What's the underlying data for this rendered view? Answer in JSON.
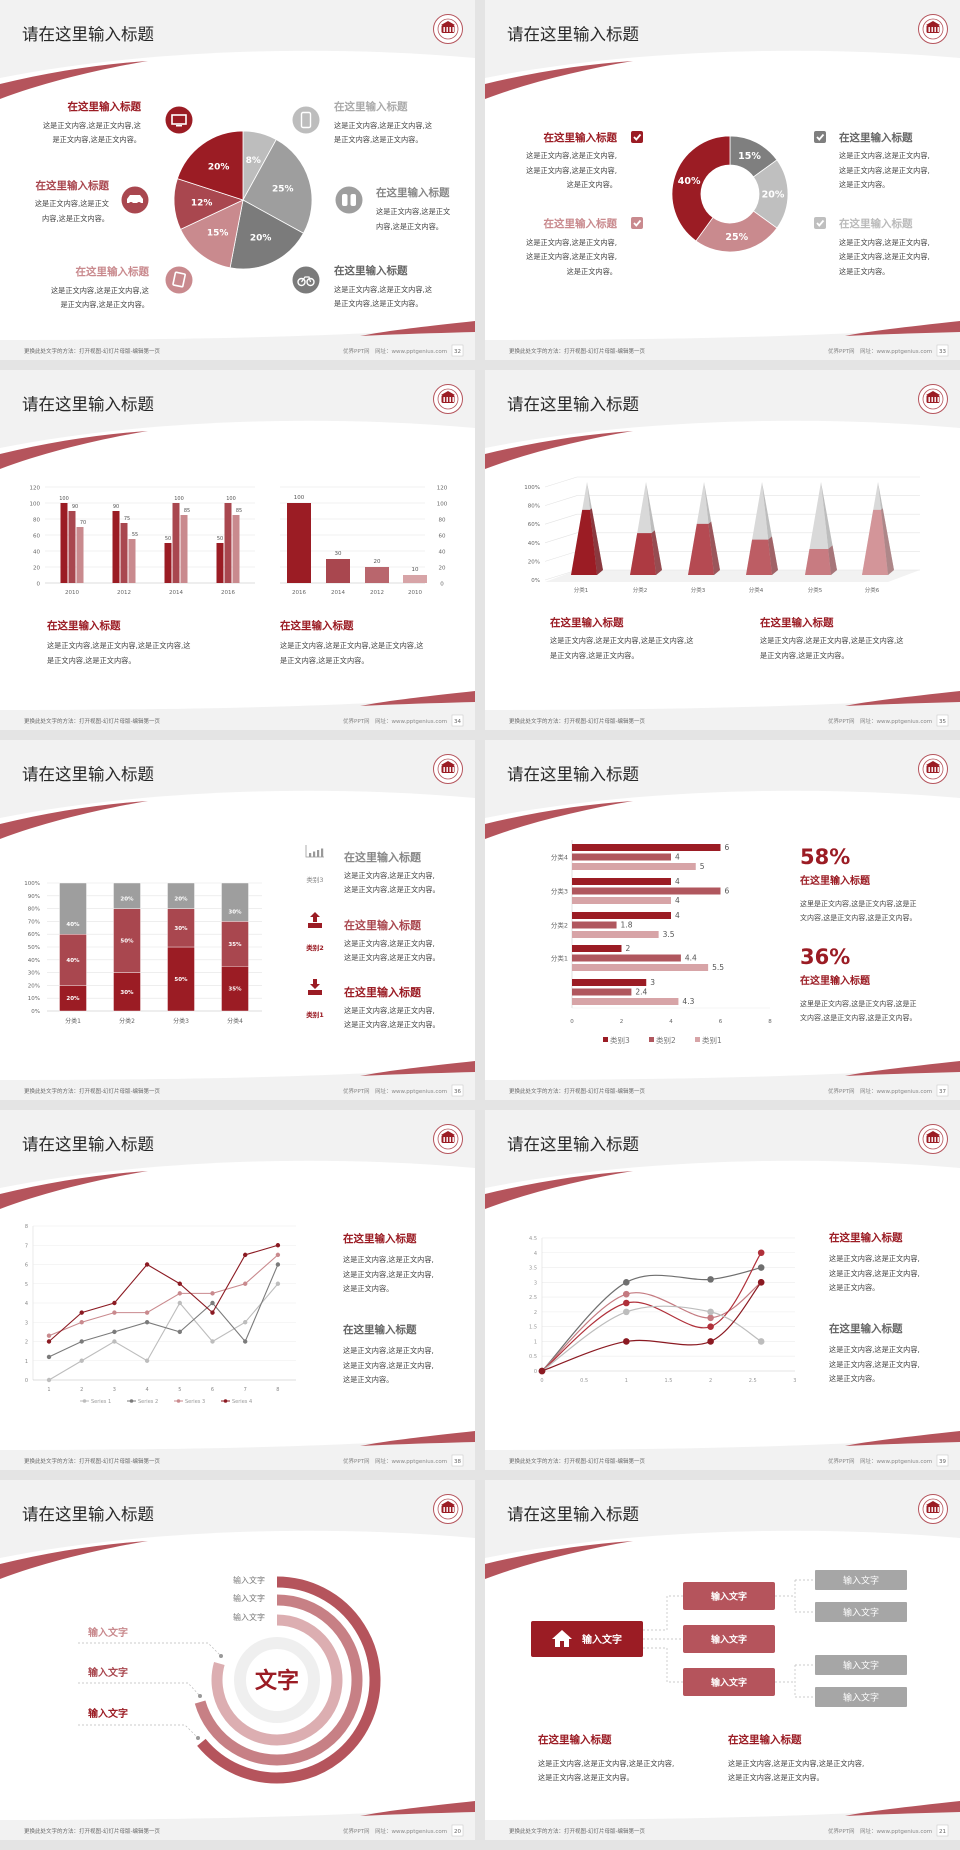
{
  "common": {
    "slide_title": "请在这里输入标题",
    "footer_note": "更换此处文字的方法：打开视图-幻灯片母版-编辑第一页",
    "footer_site": "优界PPT网",
    "footer_url": "网址：www.pptgenius.com"
  },
  "colors": {
    "dark_red": "#9b1c24",
    "mid_red": "#a9474f",
    "pink": "#c98a8e",
    "light_pink": "#d7a4a7",
    "dark_grey": "#7b7b7b",
    "grey": "#9e9e9e",
    "light_grey": "#bdbdbd"
  },
  "slides": [
    {
      "page": "32",
      "blocks": [
        {
          "title": "在这里输入标题",
          "lines": [
            "这是正文内容,这是正文内容,这",
            "是正文内容,这是正文内容。"
          ],
          "icon": "monitor-icon"
        },
        {
          "title": "在这里输入标题",
          "lines": [
            "这是正文内容,这是正文",
            "内容,这是正文内容。"
          ],
          "icon": "car-icon"
        },
        {
          "title": "在这里输入标题",
          "lines": [
            "这是正文内容,这是正文内容,这",
            "是正文内容,这是正文内容。"
          ],
          "icon": "book-icon"
        },
        {
          "title": "在这里输入标题",
          "lines": [
            "这是正文内容,这是正文内容,这",
            "是正文内容,这是正文内容。"
          ],
          "icon": "phone-icon"
        },
        {
          "title": "在这里输入标题",
          "lines": [
            "这是正文内容,这是正文",
            "内容,这是正文内容。"
          ],
          "icon": "binoculars-icon"
        },
        {
          "title": "在这里输入标题",
          "lines": [
            "这是正文内容,这是正文内容,这",
            "是正文内容,这是正文内容。"
          ],
          "icon": "bicycle-icon"
        }
      ]
    },
    {
      "page": "33",
      "blocks": [
        {
          "title": "在这里输入标题",
          "lines": [
            "这是正文内容,这是正文内容,",
            "这是正文内容,这是正文内容,",
            "这是正文内容。"
          ]
        },
        {
          "title": "在这里输入标题",
          "lines": [
            "这是正文内容,这是正文内容,",
            "这是正文内容,这是正文内容,",
            "这是正文内容。"
          ]
        },
        {
          "title": "在这里输入标题",
          "lines": [
            "这是正文内容,这是正文内容,",
            "这是正文内容,这是正文内容,",
            "这是正文内容。"
          ]
        },
        {
          "title": "在这里输入标题",
          "lines": [
            "这是正文内容,这是正文内容,",
            "这是正文内容,这是正文内容,",
            "这是正文内容。"
          ]
        }
      ]
    },
    {
      "page": "34",
      "blocks": [
        {
          "title": "在这里输入标题",
          "lines": [
            "这是正文内容,这是正文内容,这是正文内容,这",
            "是正文内容,这是正文内容。"
          ]
        },
        {
          "title": "在这里输入标题",
          "lines": [
            "这是正文内容,这是正文内容,这是正文内容,这",
            "是正文内容,这是正文内容。"
          ]
        }
      ]
    },
    {
      "page": "35",
      "blocks": [
        {
          "title": "在这里输入标题",
          "lines": [
            "这是正文内容,这是正文内容,这是正文内容,这",
            "是正文内容,这是正文内容。"
          ]
        },
        {
          "title": "在这里输入标题",
          "lines": [
            "这是正文内容,这是正文内容,这是正文内容,这",
            "是正文内容,这是正文内容。"
          ]
        }
      ]
    },
    {
      "page": "36",
      "blocks": [
        {
          "label": "类别3",
          "icon": "bar-chart-icon",
          "title": "在这里输入标题",
          "lines": [
            "这是正文内容,这是正文内容,",
            "这是正文内容,这是正文内容。"
          ]
        },
        {
          "label": "类别2",
          "icon": "upload-icon",
          "title": "在这里输入标题",
          "lines": [
            "这是正文内容,这是正文内容,",
            "这是正文内容,这是正文内容。"
          ]
        },
        {
          "label": "类别1",
          "icon": "download-icon",
          "title": "在这里输入标题",
          "lines": [
            "这是正文内容,这是正文内容,",
            "这是正文内容,这是正文内容。"
          ]
        }
      ]
    },
    {
      "page": "37",
      "stats": [
        {
          "value": "58%",
          "title": "在这里输入标题",
          "lines": [
            "这里是正文内容,这是正文内容,这是正",
            "文内容,这是正文内容,这是正文内容。"
          ]
        },
        {
          "value": "36%",
          "title": "在这里输入标题",
          "lines": [
            "这里是正文内容,这是正文内容,这是正",
            "文内容,这是正文内容,这是正文内容。"
          ]
        }
      ]
    },
    {
      "page": "38",
      "blocks": [
        {
          "title": "在这里输入标题",
          "lines": [
            "这是正文内容,这是正文内容,",
            "这是正文内容,这是正文内容,",
            "这是正文内容。"
          ]
        },
        {
          "title": "在这里输入标题",
          "lines": [
            "这是正文内容,这是正文内容,",
            "这是正文内容,这是正文内容,",
            "这是正文内容。"
          ]
        }
      ]
    },
    {
      "page": "39",
      "blocks": [
        {
          "title": "在这里输入标题",
          "lines": [
            "这是正文内容,这是正文内容,",
            "这是正文内容,这是正文内容,",
            "这是正文内容。"
          ]
        },
        {
          "title": "在这里输入标题",
          "lines": [
            "这是正文内容,这是正文内容,",
            "这是正文内容,这是正文内容,",
            "这是正文内容。"
          ]
        }
      ]
    },
    {
      "page": "20",
      "center": "文字",
      "top_labels": [
        "输入文字",
        "输入文字",
        "输入文字"
      ],
      "left_labels": [
        "输入文字",
        "输入文字",
        "输入文字"
      ]
    },
    {
      "page": "21",
      "root": "输入文字",
      "mid": [
        "输入文字",
        "输入文字",
        "输入文字"
      ],
      "leaves": [
        "输入文字",
        "输入文字",
        "输入文字",
        "输入文字"
      ],
      "blocks": [
        {
          "title": "在这里输入标题",
          "lines": [
            "这是正文内容,这是正文内容,这是正文内容,",
            "这是正文内容,这是正文内容。"
          ]
        },
        {
          "title": "在这里输入标题",
          "lines": [
            "这是正文内容,这是正文内容,这是正文内容,",
            "这是正文内容,这是正文内容。"
          ]
        }
      ]
    }
  ],
  "chart_data": [
    {
      "type": "pie",
      "slide": "32",
      "values": [
        8,
        25,
        20,
        15,
        12,
        20
      ],
      "labels": [
        "8%",
        "25%",
        "20%",
        "15%",
        "12%",
        "20%"
      ],
      "colors": [
        "#bdbdbd",
        "#9e9e9e",
        "#7b7b7b",
        "#c98a8e",
        "#a9474f",
        "#9b1c24"
      ]
    },
    {
      "type": "pie",
      "subtype": "donut",
      "slide": "33",
      "values": [
        15,
        20,
        25,
        40
      ],
      "labels": [
        "15%",
        "20%",
        "25%",
        "40%"
      ],
      "colors": [
        "#7f7f7f",
        "#bfbfbf",
        "#c98a8e",
        "#9b1c24"
      ]
    },
    {
      "type": "bar",
      "slide": "34",
      "categories": [
        "2010",
        "2012",
        "2014",
        "2016"
      ],
      "series": [
        {
          "values": [
            100,
            90,
            50,
            50
          ]
        },
        {
          "values": [
            90,
            75,
            100,
            100
          ]
        },
        {
          "values": [
            70,
            55,
            85,
            85
          ]
        }
      ],
      "ylim": [
        0,
        120
      ],
      "yticks": [
        "0",
        "20",
        "40",
        "60",
        "80",
        "100",
        "120"
      ],
      "grid": true,
      "colors": [
        "#9b1c24",
        "#a9474f",
        "#c98a8e"
      ]
    },
    {
      "type": "bar",
      "slide": "34",
      "categories": [
        "2016",
        "2014",
        "2012",
        "2010"
      ],
      "values": [
        100,
        30,
        20,
        10
      ],
      "ylim": [
        0,
        120
      ],
      "yticks": [
        "0",
        "20",
        "40",
        "60",
        "80",
        "100",
        "120"
      ],
      "y_axis_side": "right",
      "grid": true,
      "colors": [
        "#9b1c24",
        "#a9474f",
        "#b9666d",
        "#d7a4a7"
      ]
    },
    {
      "type": "bar",
      "subtype": "3d-pyramid-stacked-100",
      "slide": "35",
      "categories": [
        "分类1",
        "分类2",
        "分类3",
        "分类4",
        "分类5",
        "分类6"
      ],
      "values": [
        70,
        45,
        55,
        38,
        28,
        70
      ],
      "ylim": [
        0,
        100
      ],
      "yticks": [
        "0%",
        "20%",
        "40%",
        "60%",
        "80%",
        "100%"
      ],
      "colors": [
        "#9b1c24",
        "#ad3a42",
        "#b54a52",
        "#bd5d64",
        "#c87b81",
        "#d39599"
      ]
    },
    {
      "type": "bar",
      "subtype": "stacked-100",
      "slide": "36",
      "categories": [
        "分类1",
        "分类2",
        "分类3",
        "分类4"
      ],
      "series": [
        {
          "name": "类别1",
          "values": [
            20,
            30,
            50,
            35
          ],
          "labels": [
            "20%",
            "30%",
            "50%",
            "35%"
          ],
          "color": "#9b1c24"
        },
        {
          "name": "类别2",
          "values": [
            40,
            50,
            30,
            35
          ],
          "labels": [
            "40%",
            "50%",
            "30%",
            "35%"
          ],
          "color": "#a9474f"
        },
        {
          "name": "类别3",
          "values": [
            40,
            20,
            20,
            30
          ],
          "labels": [
            "40%",
            "20%",
            "20%",
            "30%"
          ],
          "color": "#9e9e9e"
        }
      ],
      "yticks": [
        "0%",
        "10%",
        "20%",
        "30%",
        "40%",
        "50%",
        "60%",
        "70%",
        "80%",
        "90%",
        "100%"
      ],
      "grid": true
    },
    {
      "type": "bar",
      "subtype": "horizontal",
      "slide": "37",
      "categories": [
        "",
        "分类1",
        "分类2",
        "分类3",
        "分类4"
      ],
      "series": [
        {
          "name": "类别3",
          "values": [
            3,
            2,
            4,
            4,
            6
          ],
          "labels": [
            "3",
            "2",
            "4",
            "4",
            "6"
          ],
          "color": "#9b1c24"
        },
        {
          "name": "类别2",
          "values": [
            2.4,
            4.4,
            1.8,
            6,
            4
          ],
          "labels": [
            "2.4",
            "4.4",
            "1.8",
            "6",
            "4"
          ],
          "color": "#b0575e"
        },
        {
          "name": "类别1",
          "values": [
            4.3,
            5.5,
            3.5,
            4,
            5
          ],
          "labels": [
            "4.3",
            "5.5",
            "3.5",
            "4",
            "5"
          ],
          "color": "#d7a4a7"
        }
      ],
      "xlim": [
        0,
        8
      ],
      "xticks": [
        "0",
        "2",
        "4",
        "6",
        "8"
      ],
      "legend": "bottom"
    },
    {
      "type": "line",
      "slide": "38",
      "x": [
        1,
        2,
        3,
        4,
        5,
        6,
        7,
        8
      ],
      "series": [
        {
          "name": "Series 1",
          "values": [
            0,
            1,
            2,
            1,
            4,
            2,
            3,
            5
          ],
          "color": "#bdbdbd"
        },
        {
          "name": "Series 2",
          "values": [
            1.2,
            2,
            2.5,
            3,
            2.5,
            4,
            2,
            6
          ],
          "color": "#7b7b7b"
        },
        {
          "name": "Series 3",
          "values": [
            2.3,
            3,
            3.5,
            3.5,
            4.5,
            4.5,
            5,
            6.5
          ],
          "color": "#c98a8e"
        },
        {
          "name": "Series 4",
          "values": [
            2,
            3.5,
            4,
            6,
            5,
            3.5,
            6.5,
            7
          ],
          "color": "#8b1a22"
        }
      ],
      "ylim": [
        0,
        8
      ],
      "yticks": [
        "0",
        "1",
        "2",
        "3",
        "4",
        "5",
        "6",
        "7",
        "8"
      ],
      "xticks": [
        "1",
        "2",
        "3",
        "4",
        "5",
        "6",
        "7",
        "8"
      ],
      "grid": true,
      "legend": "bottom"
    },
    {
      "type": "scatter",
      "subtype": "smooth-lines",
      "slide": "39",
      "x": [
        0,
        1,
        2,
        2.6
      ],
      "series": [
        {
          "values": [
            0,
            3,
            3.1,
            3.5
          ],
          "color": "#6f6f6f"
        },
        {
          "values": [
            0,
            2.6,
            1.8,
            3
          ],
          "color": "#c47a80"
        },
        {
          "values": [
            0,
            2.3,
            1.5,
            4
          ],
          "color": "#b0303a"
        },
        {
          "values": [
            0,
            2,
            2,
            1
          ],
          "color": "#bdbdbd"
        },
        {
          "values": [
            0,
            1,
            1,
            3
          ],
          "color": "#8b1a22"
        }
      ],
      "xlim": [
        0,
        3
      ],
      "ylim": [
        0,
        4.5
      ],
      "xticks": [
        "0",
        "0.5",
        "1",
        "1.5",
        "2",
        "2.5",
        "3"
      ],
      "yticks": [
        "0",
        "0.5",
        "1",
        "1.5",
        "2",
        "2.5",
        "3",
        "3.5",
        "4",
        "4.5"
      ],
      "grid": true
    }
  ]
}
